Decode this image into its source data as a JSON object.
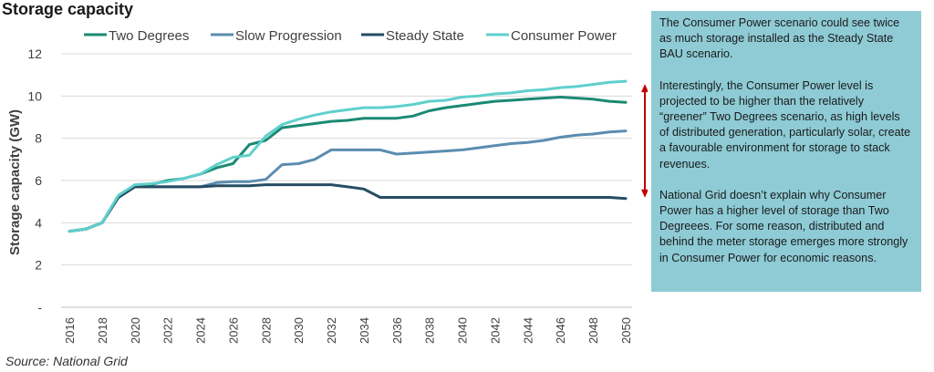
{
  "colors": {
    "two_degrees": "#1b8a73",
    "slow_progression": "#5b8db0",
    "steady_state": "#264d63",
    "consumer_power": "#5fd0cc",
    "callout_bg": "#8ecbd5",
    "arrow": "#c00000",
    "grid": "#d9d9d9"
  },
  "chart_data": {
    "type": "line",
    "title": "Storage capacity",
    "ylabel": "Storage capacity (GW)",
    "xlabel": "",
    "ylim": [
      0,
      12
    ],
    "yticks": [
      {
        "value": 0,
        "label": "-"
      },
      {
        "value": 2,
        "label": "2"
      },
      {
        "value": 4,
        "label": "4"
      },
      {
        "value": 6,
        "label": "6"
      },
      {
        "value": 8,
        "label": "8"
      },
      {
        "value": 10,
        "label": "10"
      },
      {
        "value": 12,
        "label": "12"
      }
    ],
    "grid": true,
    "legend": "top",
    "x": [
      2016,
      2017,
      2018,
      2019,
      2020,
      2021,
      2022,
      2023,
      2024,
      2025,
      2026,
      2027,
      2028,
      2029,
      2030,
      2031,
      2032,
      2033,
      2034,
      2035,
      2036,
      2037,
      2038,
      2039,
      2040,
      2041,
      2042,
      2043,
      2044,
      2045,
      2046,
      2047,
      2048,
      2049,
      2050
    ],
    "xtick_labels": [
      "2016",
      "2018",
      "2020",
      "2022",
      "2024",
      "2026",
      "2028",
      "2030",
      "2032",
      "2034",
      "2036",
      "2038",
      "2040",
      "2042",
      "2044",
      "2046",
      "2048",
      "2050"
    ],
    "series": [
      {
        "name": "Two Degrees",
        "color_key": "two_degrees",
        "values": [
          3.6,
          3.7,
          4.0,
          5.2,
          5.7,
          5.8,
          6.0,
          6.1,
          6.3,
          6.6,
          6.8,
          7.7,
          7.9,
          8.5,
          8.6,
          8.7,
          8.8,
          8.85,
          8.95,
          8.95,
          8.95,
          9.05,
          9.3,
          9.45,
          9.55,
          9.65,
          9.75,
          9.8,
          9.85,
          9.9,
          9.95,
          9.9,
          9.85,
          9.75,
          9.7
        ]
      },
      {
        "name": "Slow Progression",
        "color_key": "slow_progression",
        "values": [
          3.6,
          3.7,
          4.0,
          5.2,
          5.7,
          5.7,
          5.7,
          5.7,
          5.7,
          5.9,
          5.95,
          5.95,
          6.05,
          6.75,
          6.8,
          7.0,
          7.45,
          7.45,
          7.45,
          7.45,
          7.25,
          7.3,
          7.35,
          7.4,
          7.45,
          7.55,
          7.65,
          7.75,
          7.8,
          7.9,
          8.05,
          8.15,
          8.2,
          8.3,
          8.35
        ]
      },
      {
        "name": "Steady State",
        "color_key": "steady_state",
        "values": [
          3.6,
          3.7,
          4.0,
          5.2,
          5.7,
          5.7,
          5.7,
          5.7,
          5.7,
          5.75,
          5.75,
          5.75,
          5.8,
          5.8,
          5.8,
          5.8,
          5.8,
          5.7,
          5.6,
          5.2,
          5.2,
          5.2,
          5.2,
          5.2,
          5.2,
          5.2,
          5.2,
          5.2,
          5.2,
          5.2,
          5.2,
          5.2,
          5.2,
          5.2,
          5.15
        ]
      },
      {
        "name": "Consumer Power",
        "color_key": "consumer_power",
        "values": [
          3.6,
          3.7,
          4.0,
          5.3,
          5.8,
          5.85,
          5.95,
          6.1,
          6.3,
          6.75,
          7.1,
          7.2,
          8.1,
          8.65,
          8.9,
          9.1,
          9.25,
          9.35,
          9.45,
          9.45,
          9.5,
          9.6,
          9.75,
          9.8,
          9.95,
          10.0,
          10.1,
          10.15,
          10.25,
          10.3,
          10.4,
          10.45,
          10.55,
          10.65,
          10.7
        ]
      }
    ]
  },
  "source": "Source: National Grid",
  "callout": {
    "paragraphs": [
      "The Consumer Power scenario could see twice as much storage installed as the Steady State BAU scenario.",
      "Interestingly, the Consumer Power level is projected to be higher than the relatively “greener” Two Degrees scenario, as high levels of distributed generation, particularly solar, create a favourable environment for storage to stack revenues.",
      "National Grid doesn’t explain why Consumer Power has a higher level of storage than Two Degreees. For some reason, distributed and behind the meter storage emerges more strongly in Consumer Power for economic reasons."
    ]
  }
}
